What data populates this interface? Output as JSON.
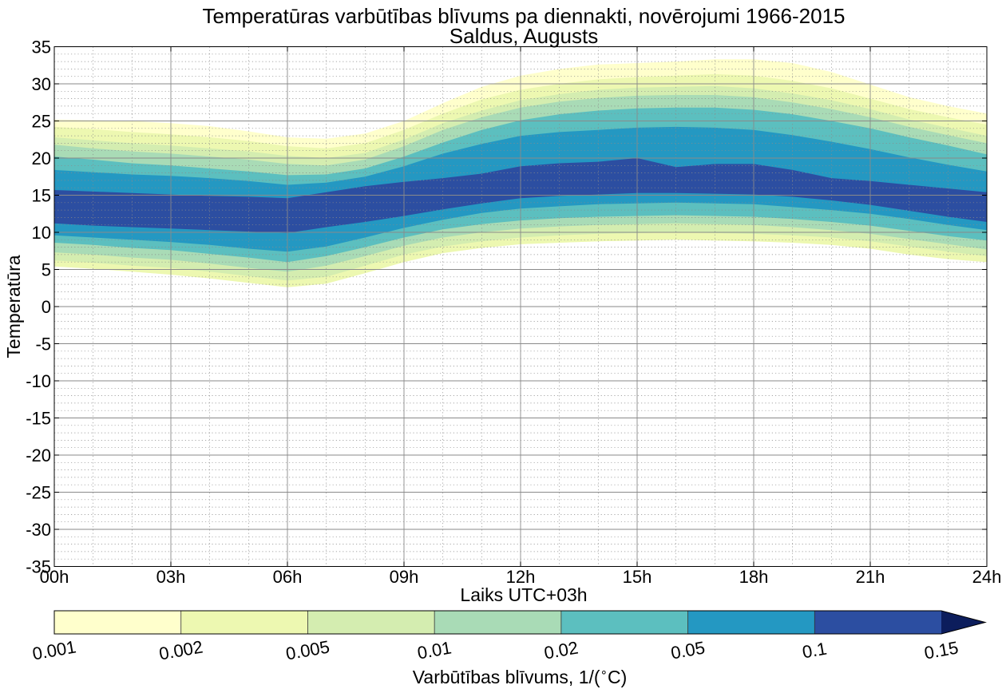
{
  "chart_data": {
    "type": "contour",
    "title": "Temperatūras varbūtības blīvums pa diennakti, novērojumi 1966-2015",
    "subtitle": "Saldus, Augusts",
    "xlabel": "Laiks UTC+03h",
    "ylabel": "Temperatūra",
    "x_ticks": [
      "00h",
      "03h",
      "06h",
      "09h",
      "12h",
      "15h",
      "18h",
      "21h",
      "24h"
    ],
    "xlim": [
      0,
      24
    ],
    "ylim": [
      -35,
      35
    ],
    "y_ticks": [
      35,
      30,
      25,
      20,
      15,
      10,
      5,
      0,
      -5,
      -10,
      -15,
      -20,
      -25,
      -30,
      -35
    ],
    "y_tick_labels": [
      "35",
      "30",
      "25",
      "20",
      "15",
      "10",
      "5",
      "0",
      "-5",
      "-10",
      "-15",
      "-20",
      "-25",
      "-30",
      "-35"
    ],
    "grid": "major solid, minor dotted",
    "hours": [
      0,
      1,
      2,
      3,
      4,
      5,
      6,
      7,
      8,
      9,
      10,
      11,
      12,
      13,
      14,
      15,
      16,
      17,
      18,
      19,
      20,
      21,
      22,
      23,
      24
    ],
    "density_bands": [
      {
        "level": 0.001,
        "color": "#ffffcc",
        "upper": [
          25.2,
          25.1,
          25,
          24.7,
          24.3,
          23.6,
          22.8,
          22.6,
          23.3,
          25,
          27.4,
          29.6,
          31.1,
          32,
          32.6,
          32.8,
          33,
          33.3,
          33.3,
          32.8,
          31.6,
          29.9,
          28.2,
          27,
          26
        ],
        "lower": [
          5.4,
          5.1,
          4.7,
          4.3,
          3.8,
          3.2,
          2.6,
          3.1,
          4.5,
          6,
          7.2,
          7.9,
          8.4,
          8.6,
          8.8,
          8.9,
          9,
          8.9,
          8.8,
          8.6,
          8.3,
          7.8,
          7,
          6.4,
          6
        ]
      },
      {
        "level": 0.002,
        "color": "#edf8b1",
        "upper": [
          24.2,
          23.9,
          23.5,
          23.2,
          22.8,
          22.3,
          21.6,
          21.3,
          22,
          23.8,
          26,
          27.9,
          29.2,
          30,
          30.6,
          30.9,
          31.1,
          31.3,
          31.1,
          30.4,
          29.4,
          28,
          26.6,
          25.5,
          24.5
        ]
      },
      {
        "level": 0.005,
        "color": "#d4edb0",
        "upper": [
          22.8,
          22.4,
          22,
          21.7,
          21.3,
          20.9,
          20.3,
          20,
          20.7,
          22.5,
          24.7,
          26.4,
          27.8,
          28.6,
          29.2,
          29.5,
          29.6,
          29.7,
          29.4,
          28.7,
          27.8,
          26.6,
          25.2,
          24.1,
          23
        ],
        "lower": [
          6.2,
          5.9,
          5.5,
          5.2,
          4.7,
          4.1,
          3.5,
          4,
          5.5,
          7,
          8.1,
          8.8,
          9.3,
          9.6,
          9.8,
          9.9,
          10,
          9.9,
          9.8,
          9.6,
          9.3,
          8.8,
          8.1,
          7.4,
          6.8
        ]
      },
      {
        "level": 0.01,
        "color": "#a9dbb6",
        "upper": [
          21.8,
          21.3,
          20.9,
          20.6,
          20.2,
          19.8,
          19.2,
          19,
          19.8,
          21.6,
          23.8,
          25.5,
          26.8,
          27.6,
          28.1,
          28.4,
          28.5,
          28.5,
          28.2,
          27.5,
          26.6,
          25.5,
          24.2,
          23.1,
          22
        ],
        "lower": [
          7.3,
          7,
          6.6,
          6.3,
          5.8,
          5.2,
          4.7,
          5.5,
          6.8,
          8.2,
          9.3,
          10,
          10.5,
          10.8,
          11,
          11.1,
          11.2,
          11.1,
          11,
          10.7,
          10.3,
          9.8,
          9.1,
          8.4,
          7.7
        ]
      },
      {
        "level": 0.02,
        "color": "#5cbfbf",
        "upper": [
          20.2,
          19.8,
          19.3,
          19,
          18.6,
          18.2,
          17.7,
          17.8,
          18.6,
          20.2,
          22.1,
          23.8,
          25.1,
          25.9,
          26.4,
          26.7,
          26.8,
          26.8,
          26.5,
          25.9,
          25,
          24,
          22.8,
          21.7,
          20.5
        ],
        "lower": [
          8.6,
          8.3,
          7.9,
          7.6,
          7.1,
          6.6,
          6,
          6.8,
          8,
          9.3,
          10.4,
          11.1,
          11.6,
          11.9,
          12.1,
          12.2,
          12.3,
          12.2,
          12.1,
          11.8,
          11.4,
          10.9,
          10.2,
          9.5,
          8.9
        ]
      },
      {
        "level": 0.05,
        "color": "#2498c2",
        "upper": [
          18.4,
          18.1,
          17.8,
          17.6,
          17.3,
          16.9,
          16.4,
          16.7,
          17.5,
          18.9,
          20.6,
          21.9,
          23,
          23.5,
          23.8,
          24.1,
          24.2,
          24.1,
          23.8,
          23.1,
          22.2,
          21.2,
          20.1,
          19.1,
          18.2
        ],
        "lower": [
          9.6,
          9.3,
          9,
          8.7,
          8.3,
          7.8,
          7.4,
          8.1,
          9.3,
          10.6,
          11.7,
          12.6,
          13.2,
          13.5,
          13.8,
          13.9,
          14,
          13.9,
          13.8,
          13.4,
          13,
          12.5,
          11.8,
          11,
          10.3
        ]
      },
      {
        "level": 0.1,
        "color": "#2c4ea1",
        "upper": [
          15.7,
          15.5,
          15.3,
          15.1,
          14.9,
          14.8,
          14.6,
          15.4,
          16.2,
          16.8,
          17.3,
          17.9,
          18.9,
          19.3,
          19.5,
          20,
          18.8,
          19.2,
          19.2,
          18.4,
          17.3,
          16.9,
          16.4,
          15.9,
          15.4
        ],
        "lower": [
          11.2,
          10.9,
          10.7,
          10.5,
          10.3,
          10.1,
          9.9,
          10.7,
          11.4,
          12.2,
          13.1,
          13.9,
          14.6,
          14.9,
          15.1,
          15.3,
          15.3,
          15.2,
          15.1,
          14.8,
          14.3,
          13.7,
          12.9,
          12.1,
          11.4
        ]
      }
    ],
    "colorbar": {
      "label": "Varbūtības blīvums, 1/($^\\circ$C)",
      "label_text": "Varbūtības blīvums, 1/(",
      "label_deg": "∘",
      "label_end": "C)",
      "tick_labels": [
        "0.001",
        "0.002",
        "0.005",
        "0.01",
        "0.02",
        "0.05",
        "0.1",
        "0.15"
      ],
      "colors": [
        "#ffffcc",
        "#edf8b1",
        "#d4edb0",
        "#a9dbb6",
        "#5cbfbf",
        "#2498c2",
        "#2c4ea1"
      ],
      "extend_color": "#0c1d5c",
      "extend": "max"
    }
  }
}
